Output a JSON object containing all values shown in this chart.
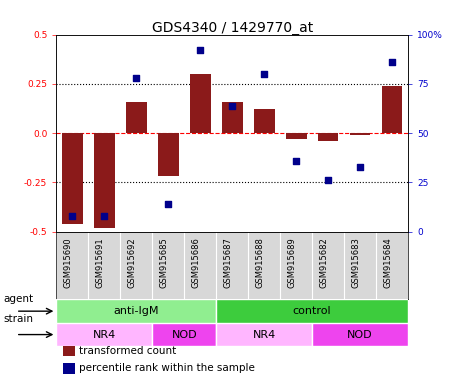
{
  "title": "GDS4340 / 1429770_at",
  "samples": [
    "GSM915690",
    "GSM915691",
    "GSM915692",
    "GSM915685",
    "GSM915686",
    "GSM915687",
    "GSM915688",
    "GSM915689",
    "GSM915682",
    "GSM915683",
    "GSM915684"
  ],
  "bar_values": [
    -0.46,
    -0.48,
    0.16,
    -0.22,
    0.3,
    0.16,
    0.12,
    -0.03,
    -0.04,
    -0.01,
    0.24
  ],
  "dot_values": [
    8,
    8,
    78,
    14,
    92,
    64,
    80,
    36,
    26,
    33,
    86
  ],
  "bar_color": "#8B1A1A",
  "dot_color": "#00008B",
  "ylim_left": [
    -0.5,
    0.5
  ],
  "ylim_right": [
    0,
    100
  ],
  "yticks_left": [
    -0.5,
    -0.25,
    0.0,
    0.25,
    0.5
  ],
  "yticks_right": [
    0,
    25,
    50,
    75,
    100
  ],
  "ytick_labels_right": [
    "0",
    "25",
    "50",
    "75",
    "100%"
  ],
  "hlines": [
    0.25,
    0.0,
    -0.25
  ],
  "hline_styles": [
    "dotted",
    "dashed",
    "dotted"
  ],
  "hline_colors": [
    "black",
    "red",
    "black"
  ],
  "agent_groups": [
    {
      "label": "anti-IgM",
      "start": 0,
      "end": 5,
      "color": "#90EE90"
    },
    {
      "label": "control",
      "start": 5,
      "end": 11,
      "color": "#3DCC3D"
    }
  ],
  "strain_groups": [
    {
      "label": "NR4",
      "start": 0,
      "end": 3,
      "color": "#FFB6FF"
    },
    {
      "label": "NOD",
      "start": 3,
      "end": 5,
      "color": "#EE44EE"
    },
    {
      "label": "NR4",
      "start": 5,
      "end": 8,
      "color": "#FFB6FF"
    },
    {
      "label": "NOD",
      "start": 8,
      "end": 11,
      "color": "#EE44EE"
    }
  ],
  "legend_items": [
    {
      "label": "transformed count",
      "color": "#8B1A1A"
    },
    {
      "label": "percentile rank within the sample",
      "color": "#00008B"
    }
  ],
  "agent_label": "agent",
  "strain_label": "strain",
  "bar_width": 0.65,
  "tick_label_fontsize": 6.5,
  "title_fontsize": 10,
  "sample_label_fontsize": 6,
  "annot_fontsize": 8
}
